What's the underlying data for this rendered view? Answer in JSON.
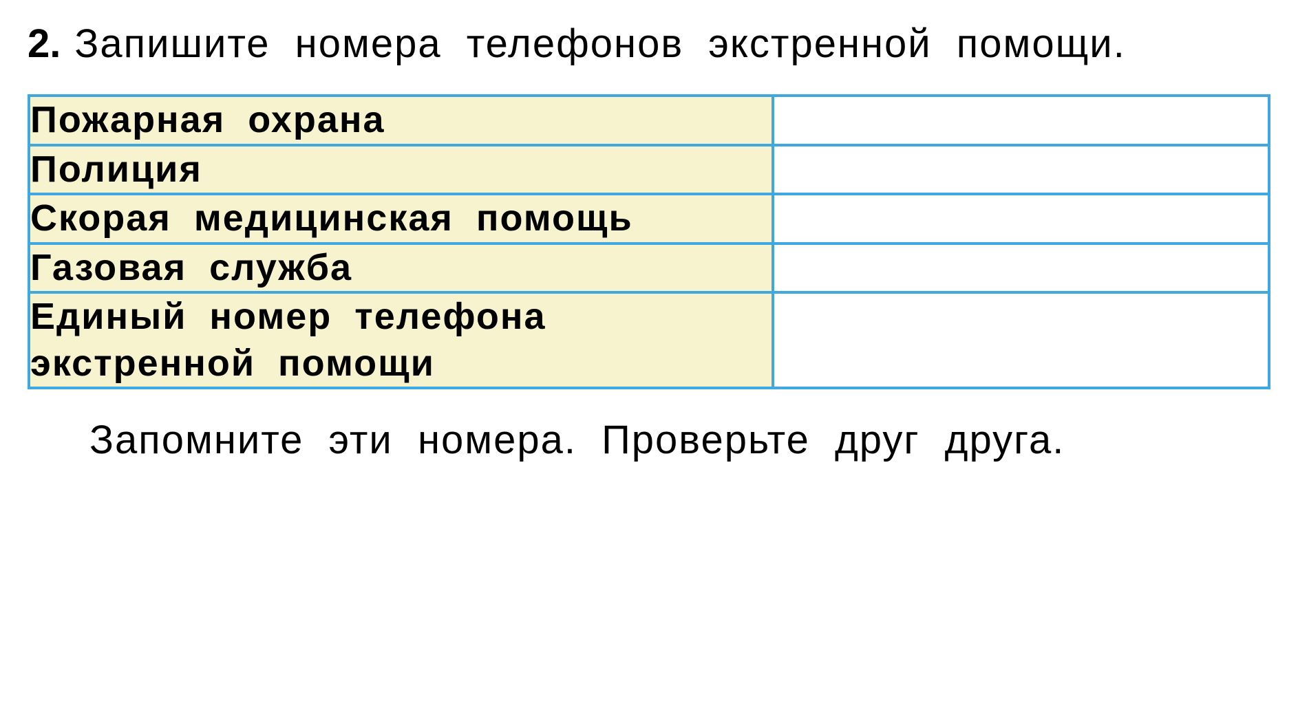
{
  "question": {
    "number": "2.",
    "text": "Запишите номера телефонов экстренной помощи."
  },
  "table": {
    "type": "table",
    "border_color": "#3fa8e0",
    "label_background": "#f7f3cf",
    "value_background": "#ffffff",
    "label_fontsize": 54,
    "label_fontweight": 700,
    "rows": [
      {
        "label": "Пожарная охрана",
        "value": ""
      },
      {
        "label": "Полиция",
        "value": ""
      },
      {
        "label": "Скорая медицинская помощь",
        "value": ""
      },
      {
        "label": "Газовая служба",
        "value": ""
      },
      {
        "label": "Единый номер телефона экстренной помощи",
        "value": ""
      }
    ]
  },
  "footer": {
    "text": "Запомните эти номера. Проверьте друг друга."
  },
  "colors": {
    "page_background": "#ffffff",
    "text_color": "#000000",
    "table_border": "#3fa8e0",
    "label_cell_bg": "#f7f3cf"
  },
  "typography": {
    "question_fontsize": 58,
    "footer_fontsize": 58,
    "font_family": "Arial"
  }
}
